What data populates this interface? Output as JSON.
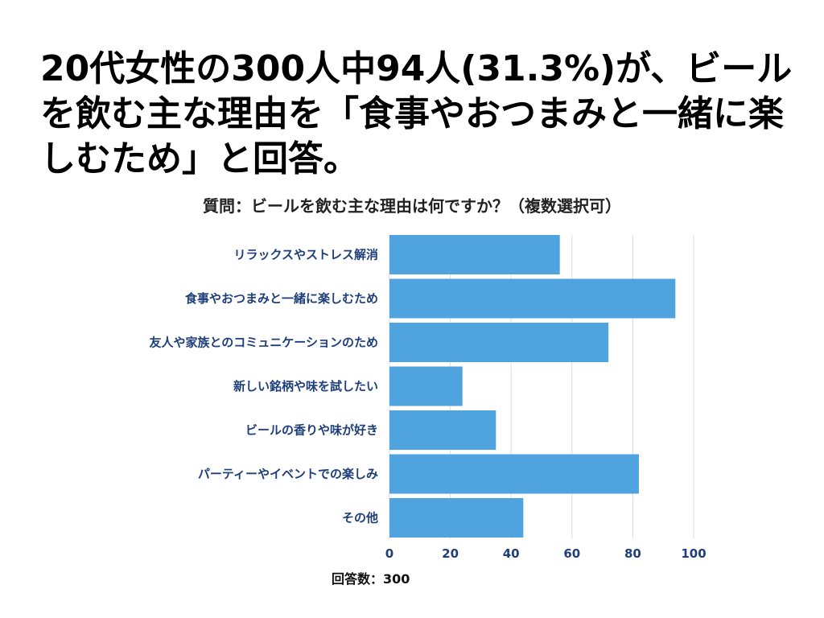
{
  "headline": "20代女性の300人中94人(31.3%)が、ビールを飲む主な理由を「食事やおつまみと一緒に楽しむため」と回答。",
  "chart_data": {
    "type": "bar",
    "orientation": "horizontal",
    "title": "質問：ビールを飲む主な理由は何ですか？（複数選択可）",
    "categories": [
      "リラックスやストレス解消",
      "食事やおつまみと一緒に楽しむため",
      "友人や家族とのコミュニケーションのため",
      "新しい銘柄や味を試したい",
      "ビールの香りや味が好き",
      "パーティーやイベントでの楽しみ",
      "その他"
    ],
    "values": [
      56,
      94,
      72,
      24,
      35,
      82,
      44
    ],
    "xlim": [
      0,
      100
    ],
    "xticks": [
      0,
      20,
      40,
      60,
      80,
      100
    ],
    "xlabel": "回答数：300",
    "ylabel": "",
    "grid": true,
    "bar_color": "#4fa3df"
  }
}
